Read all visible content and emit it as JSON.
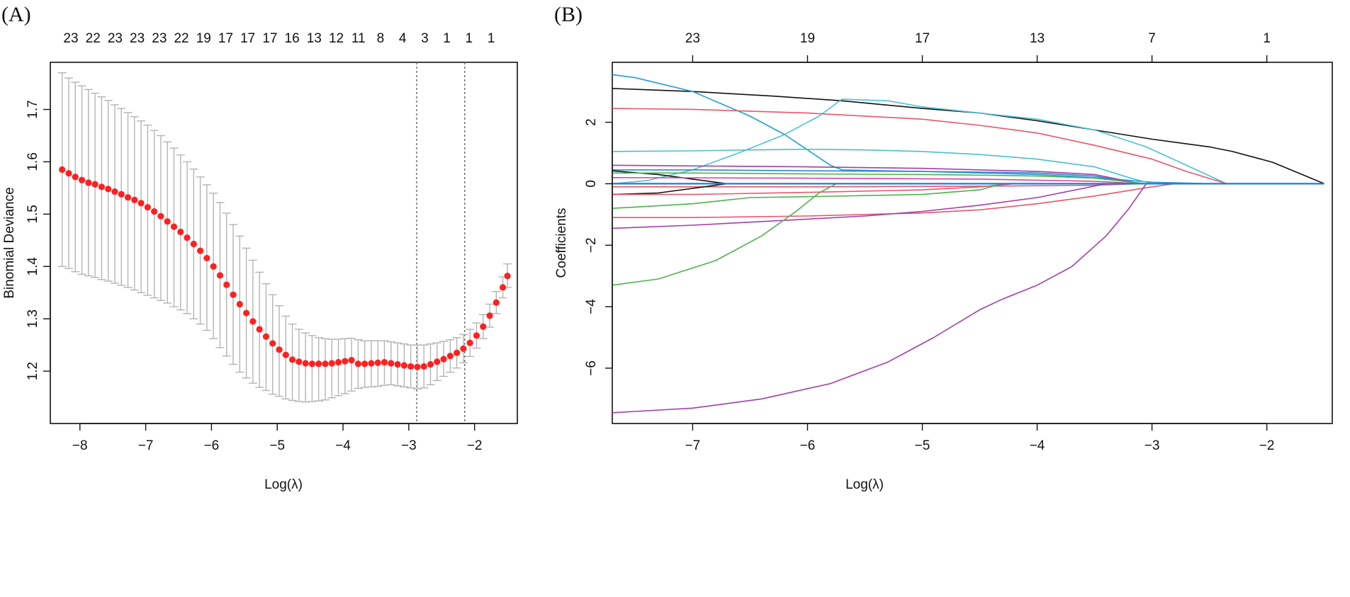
{
  "panels": [
    {
      "label": "(A)",
      "chart_data": {
        "type": "scatter",
        "subtype": "cross-validation error curve with error bars",
        "xlabel": "Log(λ)",
        "ylabel": "Binomial Deviance",
        "xlim": [
          -8.45,
          -1.35
        ],
        "ylim": [
          1.1,
          1.79
        ],
        "x_ticks": [
          -8,
          -7,
          -6,
          -5,
          -4,
          -3,
          -2
        ],
        "y_ticks": [
          1.2,
          1.3,
          1.4,
          1.5,
          1.6,
          1.7
        ],
        "top_axis_labels": [
          "23",
          "22",
          "23",
          "23",
          "23",
          "22",
          "19",
          "17",
          "17",
          "17",
          "16",
          "13",
          "12",
          "11",
          "8",
          "4",
          "3",
          "1",
          "1",
          "1"
        ],
        "vlines": [
          -2.88,
          -2.15
        ],
        "point_color": "#ff2020",
        "errorbar_color": "#b4b4b4",
        "vline_color": "#666666",
        "points": {
          "x": [
            -8.27,
            -8.17,
            -8.07,
            -7.97,
            -7.87,
            -7.77,
            -7.67,
            -7.57,
            -7.47,
            -7.37,
            -7.27,
            -7.17,
            -7.07,
            -6.97,
            -6.87,
            -6.77,
            -6.67,
            -6.57,
            -6.47,
            -6.37,
            -6.27,
            -6.17,
            -6.07,
            -5.97,
            -5.87,
            -5.77,
            -5.67,
            -5.57,
            -5.47,
            -5.37,
            -5.27,
            -5.17,
            -5.07,
            -4.97,
            -4.87,
            -4.77,
            -4.67,
            -4.57,
            -4.47,
            -4.37,
            -4.27,
            -4.17,
            -4.07,
            -3.97,
            -3.87,
            -3.77,
            -3.67,
            -3.57,
            -3.47,
            -3.37,
            -3.27,
            -3.17,
            -3.07,
            -2.97,
            -2.87,
            -2.77,
            -2.67,
            -2.57,
            -2.47,
            -2.37,
            -2.27,
            -2.17,
            -2.07,
            -1.97,
            -1.87,
            -1.77,
            -1.67,
            -1.57,
            -1.5
          ],
          "y": [
            1.585,
            1.578,
            1.571,
            1.565,
            1.56,
            1.557,
            1.552,
            1.548,
            1.543,
            1.538,
            1.532,
            1.527,
            1.521,
            1.513,
            1.505,
            1.496,
            1.486,
            1.476,
            1.466,
            1.455,
            1.443,
            1.43,
            1.416,
            1.4,
            1.383,
            1.365,
            1.346,
            1.328,
            1.311,
            1.295,
            1.28,
            1.266,
            1.253,
            1.241,
            1.231,
            1.222,
            1.218,
            1.215,
            1.214,
            1.214,
            1.214,
            1.215,
            1.217,
            1.219,
            1.221,
            1.214,
            1.214,
            1.215,
            1.216,
            1.217,
            1.215,
            1.213,
            1.211,
            1.209,
            1.208,
            1.209,
            1.213,
            1.218,
            1.223,
            1.229,
            1.235,
            1.243,
            1.254,
            1.268,
            1.285,
            1.306,
            1.331,
            1.36,
            1.382
          ],
          "upper": [
            1.77,
            1.76,
            1.752,
            1.745,
            1.738,
            1.731,
            1.724,
            1.717,
            1.709,
            1.702,
            1.694,
            1.686,
            1.678,
            1.67,
            1.66,
            1.65,
            1.638,
            1.626,
            1.613,
            1.6,
            1.586,
            1.571,
            1.556,
            1.54,
            1.522,
            1.502,
            1.48,
            1.458,
            1.435,
            1.412,
            1.389,
            1.367,
            1.346,
            1.325,
            1.305,
            1.29,
            1.28,
            1.273,
            1.268,
            1.264,
            1.262,
            1.261,
            1.261,
            1.262,
            1.263,
            1.26,
            1.258,
            1.258,
            1.258,
            1.258,
            1.256,
            1.254,
            1.252,
            1.25,
            1.25,
            1.25,
            1.252,
            1.254,
            1.257,
            1.26,
            1.264,
            1.27,
            1.28,
            1.292,
            1.308,
            1.328,
            1.352,
            1.38,
            1.405
          ],
          "lower": [
            1.4,
            1.396,
            1.39,
            1.385,
            1.382,
            1.379,
            1.375,
            1.372,
            1.368,
            1.364,
            1.36,
            1.355,
            1.35,
            1.345,
            1.34,
            1.335,
            1.33,
            1.323,
            1.317,
            1.31,
            1.3,
            1.29,
            1.278,
            1.262,
            1.245,
            1.229,
            1.213,
            1.198,
            1.187,
            1.177,
            1.169,
            1.163,
            1.156,
            1.152,
            1.147,
            1.144,
            1.142,
            1.141,
            1.142,
            1.143,
            1.145,
            1.149,
            1.153,
            1.157,
            1.162,
            1.167,
            1.169,
            1.17,
            1.171,
            1.173,
            1.174,
            1.172,
            1.17,
            1.168,
            1.166,
            1.168,
            1.174,
            1.182,
            1.19,
            1.198,
            1.206,
            1.216,
            1.228,
            1.244,
            1.262,
            1.284,
            1.31,
            1.34,
            1.36
          ]
        }
      }
    },
    {
      "label": "(B)",
      "chart_data": {
        "type": "line",
        "subtype": "LASSO coefficient paths",
        "xlabel": "Log(λ)",
        "ylabel": "Coefficients",
        "xlim": [
          -7.7,
          -1.43
        ],
        "ylim": [
          -7.8,
          3.95
        ],
        "x_ticks": [
          -7,
          -6,
          -5,
          -4,
          -3,
          -2
        ],
        "y_ticks": [
          -6,
          -4,
          -2,
          0,
          2
        ],
        "top_axis_ticks": [
          -7,
          -6,
          -5,
          -4,
          -3,
          -2
        ],
        "top_axis_labels": [
          "23",
          "19",
          "17",
          "13",
          "7",
          "1"
        ],
        "series": [
          {
            "color": "#111111",
            "x": [
              -7.7,
              -7,
              -6.3,
              -5.7,
              -5,
              -4.5,
              -4,
              -3.5,
              -3,
              -2.5,
              -2.3,
              -1.95,
              -1.5
            ],
            "y": [
              3.1,
              3,
              2.85,
              2.7,
              2.45,
              2.3,
              2.05,
              1.75,
              1.45,
              1.2,
              1.05,
              0.7,
              0
            ]
          },
          {
            "color": "#1f9fdb",
            "x": [
              -7.7,
              -7.5,
              -7,
              -6.5,
              -6.2,
              -6,
              -5.8,
              -5.7,
              -5,
              -4,
              -3.5,
              -3,
              -2.5
            ],
            "y": [
              3.55,
              3.45,
              3,
              2.2,
              1.6,
              1.1,
              0.6,
              0.45,
              0.4,
              0.3,
              0.2,
              0.05,
              0
            ]
          },
          {
            "color": "#4bc2d4",
            "x": [
              -7.7,
              -7.4,
              -7,
              -6.6,
              -6.2,
              -5.9,
              -5.7,
              -5.3,
              -5,
              -4.5,
              -4,
              -3.5,
              -3.05,
              -2.7,
              -2.35
            ],
            "y": [
              0,
              0.1,
              0.45,
              1,
              1.6,
              2.2,
              2.75,
              2.7,
              2.5,
              2.3,
              2.1,
              1.75,
              1.2,
              0.6,
              0
            ]
          },
          {
            "color": "#e8566b",
            "x": [
              -7.7,
              -7,
              -6,
              -5,
              -4.5,
              -4,
              -3.5,
              -3,
              -2.7,
              -2.35
            ],
            "y": [
              2.45,
              2.42,
              2.3,
              2.1,
              1.9,
              1.65,
              1.25,
              0.8,
              0.4,
              0
            ]
          },
          {
            "color": "#49bfce",
            "x": [
              -7.7,
              -7,
              -6.5,
              -6,
              -5.5,
              -5,
              -4.5,
              -4,
              -3.5,
              -3.2,
              -3
            ],
            "y": [
              1.05,
              1.07,
              1.1,
              1.12,
              1.1,
              1.05,
              0.95,
              0.8,
              0.55,
              0.2,
              0
            ]
          },
          {
            "color": "#a23ea8",
            "x": [
              -7.7,
              -7,
              -6,
              -5,
              -4.5,
              -4,
              -3.5,
              -3.1
            ],
            "y": [
              0.6,
              0.58,
              0.55,
              0.5,
              0.45,
              0.4,
              0.3,
              0
            ]
          },
          {
            "color": "#2b88cc",
            "x": [
              -7.7,
              -7,
              -6,
              -5,
              -4.5,
              -4,
              -3.5,
              -3.1
            ],
            "y": [
              0.45,
              0.45,
              0.42,
              0.4,
              0.38,
              0.35,
              0.25,
              0
            ]
          },
          {
            "color": "#111111",
            "x": [
              -7.7,
              -7.3,
              -7,
              -6.8,
              -6.7
            ],
            "y": [
              0.42,
              0.3,
              0.15,
              0.05,
              0
            ]
          },
          {
            "color": "#4db34d",
            "x": [
              -7.7,
              -7,
              -6,
              -5,
              -4.5,
              -4,
              -3.5,
              -3.05
            ],
            "y": [
              0.35,
              0.35,
              0.32,
              0.3,
              0.28,
              0.25,
              0.18,
              0
            ]
          },
          {
            "color": "#d6409b",
            "x": [
              -7.7,
              -6,
              -4.5,
              -3.5,
              -3.1
            ],
            "y": [
              0.2,
              0.18,
              0.15,
              0.08,
              0
            ]
          },
          {
            "color": "#e8566b",
            "x": [
              -7.7,
              -6,
              -4.5,
              -3.5,
              -3.1
            ],
            "y": [
              -0.1,
              -0.1,
              -0.08,
              -0.05,
              0
            ]
          },
          {
            "color": "#111111",
            "x": [
              -7.7,
              -7.3,
              -7,
              -6.8,
              -6.7
            ],
            "y": [
              -0.35,
              -0.3,
              -0.15,
              -0.05,
              0
            ]
          },
          {
            "color": "#e8566b",
            "x": [
              -7.7,
              -7,
              -6,
              -5,
              -4.5,
              -4.2
            ],
            "y": [
              -0.35,
              -0.35,
              -0.28,
              -0.2,
              -0.1,
              0
            ]
          },
          {
            "color": "#4db34d",
            "x": [
              -7.7,
              -7,
              -6.5,
              -6,
              -5,
              -4.5,
              -4.3
            ],
            "y": [
              -0.8,
              -0.65,
              -0.45,
              -0.42,
              -0.35,
              -0.2,
              0
            ]
          },
          {
            "color": "#e8566b",
            "x": [
              -7.7,
              -7,
              -6,
              -5,
              -4.5,
              -4,
              -3.5,
              -3,
              -2.8
            ],
            "y": [
              -1.1,
              -1.1,
              -1.05,
              -0.95,
              -0.85,
              -0.65,
              -0.4,
              -0.1,
              0
            ]
          },
          {
            "color": "#a23ea8",
            "x": [
              -7.7,
              -7,
              -6,
              -5.5,
              -5,
              -4.5,
              -4,
              -3.6,
              -3.4
            ],
            "y": [
              -1.45,
              -1.35,
              -1.15,
              -1.05,
              -0.9,
              -0.7,
              -0.45,
              -0.15,
              0
            ]
          },
          {
            "color": "#4db34d",
            "x": [
              -7.7,
              -7.3,
              -6.8,
              -6.4,
              -6.1,
              -5.9,
              -5.75
            ],
            "y": [
              -3.3,
              -3.1,
              -2.5,
              -1.7,
              -0.9,
              -0.3,
              0
            ]
          },
          {
            "color": "#a23ea8",
            "x": [
              -7.7,
              -7,
              -6.4,
              -5.8,
              -5.3,
              -4.9,
              -4.5,
              -4.3,
              -4,
              -3.7,
              -3.4,
              -3.2,
              -3.05
            ],
            "y": [
              -7.45,
              -7.3,
              -7,
              -6.5,
              -5.8,
              -5,
              -4.1,
              -3.75,
              -3.3,
              -2.7,
              -1.7,
              -0.8,
              0
            ]
          },
          {
            "color": "#1f7fcf",
            "x": [
              -7.7,
              -1.5
            ],
            "y": [
              0,
              0
            ]
          }
        ]
      }
    }
  ]
}
